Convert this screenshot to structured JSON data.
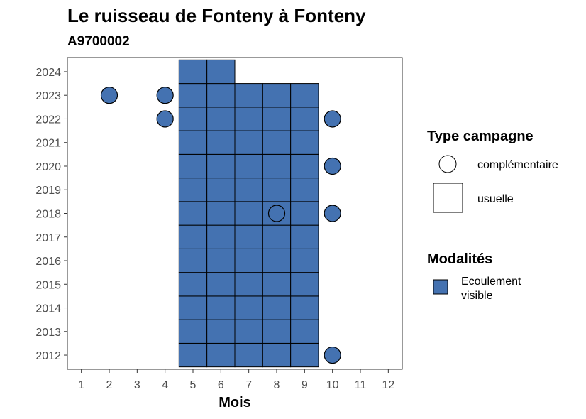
{
  "chart_data": {
    "type": "scatter",
    "title": "Le ruisseau de Fonteny à Fonteny",
    "subtitle": "A9700002",
    "xlabel": "Mois",
    "ylabel": "",
    "x_ticks": [
      1,
      2,
      3,
      4,
      5,
      6,
      7,
      8,
      9,
      10,
      11,
      12
    ],
    "y_ticks": [
      2012,
      2013,
      2014,
      2015,
      2016,
      2017,
      2018,
      2019,
      2020,
      2021,
      2022,
      2023,
      2024
    ],
    "xlim": [
      0.5,
      12.5
    ],
    "ylim": [
      2011.4,
      2024.6
    ],
    "fill_color": "#4472b1",
    "legend": {
      "type_title": "Type campagne",
      "type_entries": [
        {
          "label": "complémentaire",
          "shape": "circle"
        },
        {
          "label": "usuelle",
          "shape": "square"
        }
      ],
      "mod_title": "Modalités",
      "mod_entries": [
        {
          "label_lines": [
            "Ecoulement",
            "visible"
          ],
          "color": "#4472b1"
        }
      ]
    },
    "series": [
      {
        "campaign": "usuelle",
        "modalite": "Ecoulement visible",
        "shape": "square",
        "points": [
          [
            5,
            2012
          ],
          [
            6,
            2012
          ],
          [
            7,
            2012
          ],
          [
            8,
            2012
          ],
          [
            9,
            2012
          ],
          [
            5,
            2013
          ],
          [
            6,
            2013
          ],
          [
            7,
            2013
          ],
          [
            8,
            2013
          ],
          [
            9,
            2013
          ],
          [
            5,
            2014
          ],
          [
            6,
            2014
          ],
          [
            7,
            2014
          ],
          [
            8,
            2014
          ],
          [
            9,
            2014
          ],
          [
            5,
            2015
          ],
          [
            6,
            2015
          ],
          [
            7,
            2015
          ],
          [
            8,
            2015
          ],
          [
            9,
            2015
          ],
          [
            5,
            2016
          ],
          [
            6,
            2016
          ],
          [
            7,
            2016
          ],
          [
            8,
            2016
          ],
          [
            9,
            2016
          ],
          [
            5,
            2017
          ],
          [
            6,
            2017
          ],
          [
            7,
            2017
          ],
          [
            8,
            2017
          ],
          [
            9,
            2017
          ],
          [
            5,
            2018
          ],
          [
            6,
            2018
          ],
          [
            7,
            2018
          ],
          [
            8,
            2018
          ],
          [
            9,
            2018
          ],
          [
            5,
            2019
          ],
          [
            6,
            2019
          ],
          [
            7,
            2019
          ],
          [
            8,
            2019
          ],
          [
            9,
            2019
          ],
          [
            5,
            2020
          ],
          [
            6,
            2020
          ],
          [
            7,
            2020
          ],
          [
            8,
            2020
          ],
          [
            9,
            2020
          ],
          [
            5,
            2021
          ],
          [
            6,
            2021
          ],
          [
            7,
            2021
          ],
          [
            8,
            2021
          ],
          [
            9,
            2021
          ],
          [
            5,
            2022
          ],
          [
            6,
            2022
          ],
          [
            7,
            2022
          ],
          [
            8,
            2022
          ],
          [
            9,
            2022
          ],
          [
            5,
            2023
          ],
          [
            6,
            2023
          ],
          [
            7,
            2023
          ],
          [
            8,
            2023
          ],
          [
            9,
            2023
          ],
          [
            5,
            2024
          ],
          [
            6,
            2024
          ]
        ]
      },
      {
        "campaign": "complémentaire",
        "modalite": "Ecoulement visible",
        "shape": "circle",
        "points": [
          [
            2,
            2023
          ],
          [
            4,
            2023
          ],
          [
            4,
            2022
          ],
          [
            10,
            2022
          ],
          [
            10,
            2020
          ],
          [
            8,
            2018
          ],
          [
            10,
            2018
          ],
          [
            10,
            2012
          ]
        ]
      }
    ]
  }
}
